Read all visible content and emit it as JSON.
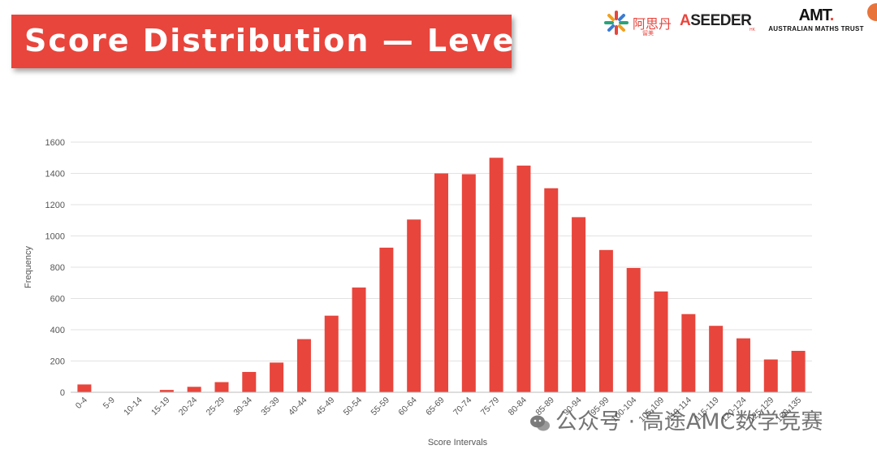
{
  "title": "Score Distribution — Level A",
  "logos": {
    "asidan_cn": "阿思丹",
    "asidan_sub": "留美",
    "asidan_en_accent": "A",
    "asidan_en_rest": "SEEDER",
    "asidan_region": "HK",
    "amt_mark": "AMT",
    "amt_dot": ".",
    "amt_full": "AUSTRALIAN MATHS TRUST"
  },
  "watermark": {
    "text": "公众号 · 高途AMC数学竞赛"
  },
  "colors": {
    "bar": "#e8453c",
    "banner": "#e8453c",
    "grid": "#e2e2e2",
    "axis_text": "#555555"
  },
  "chart_data": {
    "type": "bar",
    "title": "",
    "xlabel": "Score Intervals",
    "ylabel": "Frequency",
    "ylim": [
      0,
      1600
    ],
    "yticks": [
      0,
      200,
      400,
      600,
      800,
      1000,
      1200,
      1400,
      1600
    ],
    "grid": true,
    "legend": "none",
    "categories": [
      "0-4",
      "5-9",
      "10-14",
      "15-19",
      "20-24",
      "25-29",
      "30-34",
      "35-39",
      "40-44",
      "45-49",
      "50-54",
      "55-59",
      "60-64",
      "65-69",
      "70-74",
      "75-79",
      "80-84",
      "85-89",
      "90-94",
      "95-99",
      "100-104",
      "105-109",
      "110-114",
      "115-119",
      "120-124",
      "125-129",
      "130-135"
    ],
    "values": [
      50,
      0,
      0,
      15,
      35,
      65,
      130,
      190,
      340,
      490,
      670,
      925,
      1105,
      1400,
      1395,
      1500,
      1450,
      1305,
      1120,
      910,
      795,
      645,
      500,
      425,
      345,
      210,
      265
    ]
  }
}
